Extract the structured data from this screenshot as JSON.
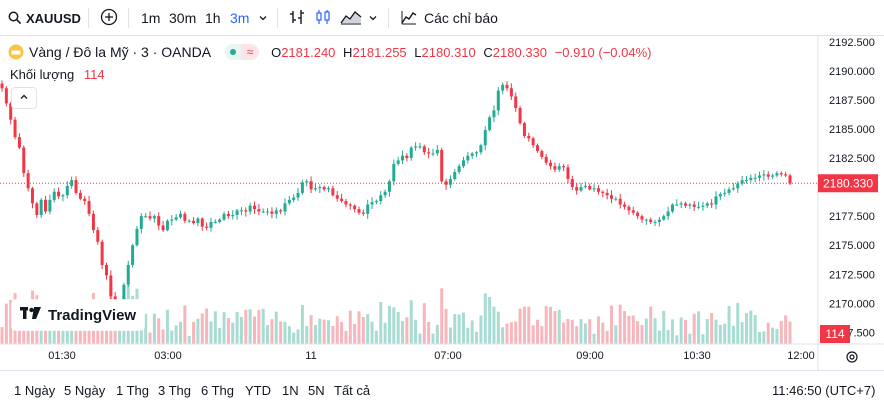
{
  "toolbar": {
    "symbol": "XAUUSD",
    "intervals": [
      "1m",
      "30m",
      "1h",
      "3m"
    ],
    "active_interval": "3m",
    "indicators_label": "Các chỉ báo"
  },
  "legend": {
    "title": "Vàng / Đô la Mỹ · 3 · OANDA",
    "open_label": "O",
    "open": "2181.240",
    "high_label": "H",
    "high": "2181.255",
    "low_label": "L",
    "low": "2180.310",
    "close_label": "C",
    "close": "2180.330",
    "change": "−0.910 (−0.04%)",
    "volume_label": "Khối lượng",
    "volume_value": "114"
  },
  "price_scale": {
    "labels": [
      "2192.500",
      "2190.000",
      "2187.500",
      "2185.000",
      "2182.500",
      "2180.000",
      "2177.500",
      "2175.000",
      "2172.500",
      "2170.000",
      "2167.500"
    ],
    "current_price": "2180.330",
    "current_volume": "114"
  },
  "time_axis": {
    "labels": [
      "01:30",
      "03:00",
      "11",
      "07:00",
      "09:00",
      "10:30",
      "12:00"
    ]
  },
  "watermark": "TradingView",
  "bottombar": {
    "ranges": [
      "1 Ngày",
      "5 Ngày",
      "1 Thg",
      "3 Thg",
      "6 Thg",
      "YTD",
      "1N",
      "5N",
      "Tất cả"
    ],
    "clock": "11:46:50 (UTC+7)"
  },
  "colors": {
    "up": "#22ab94",
    "down": "#f23645",
    "accent": "#2962ff",
    "vol_up": "#a8dcd3",
    "vol_down": "#f7b6bb"
  },
  "chart_data": {
    "type": "candlestick",
    "ylim": [
      2166.5,
      2193
    ],
    "x_ticks": [
      "01:30",
      "03:00",
      "11",
      "07:00",
      "09:00",
      "10:30",
      "12:00"
    ],
    "closes": [
      2188.5,
      2187.2,
      2185.8,
      2184.3,
      2183.4,
      2181.2,
      2179.9,
      2178.6,
      2177.6,
      2178.9,
      2177.9,
      2178.9,
      2179.6,
      2179.2,
      2179.3,
      2180.1,
      2180.6,
      2179.5,
      2179.0,
      2178.8,
      2177.7,
      2176.3,
      2175.3,
      2173.3,
      2172.4,
      2170.6,
      2169.7,
      2170.2,
      2171.6,
      2173.3,
      2175.0,
      2176.4,
      2177.5,
      2177.5,
      2177.3,
      2177.5,
      2176.7,
      2176.3,
      2177.1,
      2177.2,
      2177.4,
      2177.7,
      2177.1,
      2177.1,
      2176.9,
      2177.3,
      2176.6,
      2176.5,
      2177.0,
      2177.0,
      2177.2,
      2177.7,
      2177.5,
      2177.6,
      2178.0,
      2178.0,
      2177.9,
      2178.4,
      2178.1,
      2177.9,
      2177.9,
      2177.9,
      2177.7,
      2178.0,
      2177.9,
      2178.6,
      2178.9,
      2179.1,
      2179.5,
      2180.4,
      2180.5,
      2179.8,
      2179.9,
      2180.0,
      2179.8,
      2179.9,
      2179.3,
      2179.0,
      2178.8,
      2178.5,
      2178.4,
      2178.1,
      2177.8,
      2177.7,
      2178.5,
      2178.7,
      2178.8,
      2179.3,
      2179.6,
      2180.5,
      2182.0,
      2182.3,
      2182.7,
      2182.5,
      2183.4,
      2183.5,
      2183.5,
      2183.0,
      2182.9,
      2182.9,
      2183.2,
      2180.5,
      2180.2,
      2180.7,
      2181.3,
      2181.8,
      2182.3,
      2182.7,
      2182.9,
      2183.0,
      2183.6,
      2184.9,
      2186.0,
      2186.6,
      2188.3,
      2188.8,
      2188.5,
      2187.8,
      2186.8,
      2185.5,
      2184.4,
      2184.2,
      2183.6,
      2183.1,
      2182.6,
      2182.1,
      2181.8,
      2181.5,
      2181.8,
      2181.7,
      2180.7,
      2180.0,
      2179.7,
      2180.0,
      2180.1,
      2179.8,
      2179.9,
      2179.6,
      2179.5,
      2179.3,
      2179.0,
      2179.0,
      2178.5,
      2178.3,
      2178.0,
      2177.8,
      2177.5,
      2177.2,
      2177.2,
      2177.0,
      2177.0,
      2177.2,
      2177.5,
      2177.9,
      2178.5,
      2178.5,
      2178.6,
      2178.4,
      2178.5,
      2178.3,
      2178.3,
      2178.4,
      2178.6,
      2178.5,
      2179.2,
      2179.4,
      2179.5,
      2179.8,
      2179.9,
      2180.3,
      2180.6,
      2180.6,
      2180.8,
      2180.8,
      2181.0,
      2181.1,
      2180.9,
      2181.0,
      2181.2,
      2181.1,
      2181.0,
      2180.3
    ]
  }
}
